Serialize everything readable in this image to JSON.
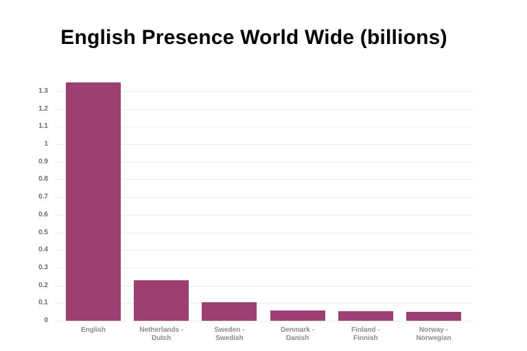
{
  "title": "English Presence World Wide (billions)",
  "colors": {
    "bar": "#9e3f74",
    "grid": "#ececec",
    "tick": "#6b6b6b",
    "xlabel": "#8a8a8a"
  },
  "chart_data": {
    "type": "bar",
    "title": "English Presence World Wide (billions)",
    "xlabel": "",
    "ylabel": "",
    "categories": [
      "English",
      "Netherlands - Dutch",
      "Sweden - Swedish",
      "Denmark - Danish",
      "Finland - Finnish",
      "Norway - Norwegian"
    ],
    "category_lines": [
      [
        "English"
      ],
      [
        "Netherlands -",
        "Dutch"
      ],
      [
        "Sweden -",
        "Swedish"
      ],
      [
        "Denmark -",
        "Danish"
      ],
      [
        "Finland -",
        "Finnish"
      ],
      [
        "Norway -",
        "Norwegian"
      ]
    ],
    "values": [
      1.35,
      0.23,
      0.105,
      0.058,
      0.056,
      0.05
    ],
    "ylim": [
      0,
      1.35
    ],
    "yticks": [
      "0",
      "0.1",
      "0.2",
      "0.3",
      "0.4",
      "0.5",
      "0.6",
      "0.7",
      "0.8",
      "0.9",
      "1",
      "1.1",
      "1.2",
      "1.3"
    ],
    "grid": true,
    "legend": null
  }
}
